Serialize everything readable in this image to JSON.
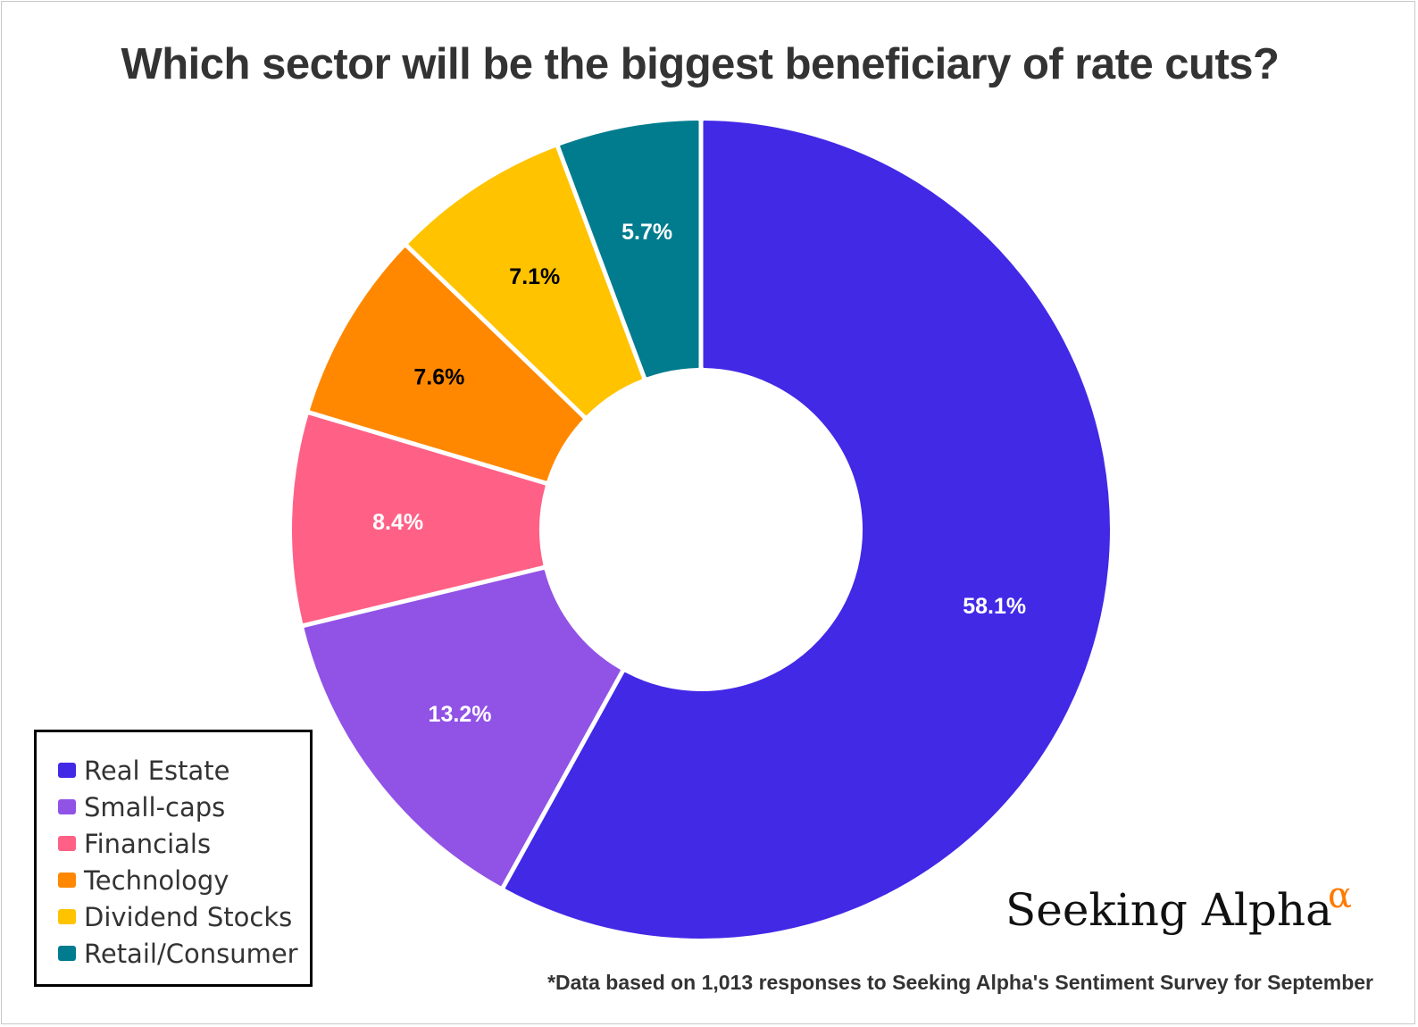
{
  "chart_data": {
    "type": "pie",
    "title": "Which sector will be the biggest beneficiary of rate cuts?",
    "donut": true,
    "categories": [
      "Real Estate",
      "Small-caps",
      "Financials",
      "Technology",
      "Dividend Stocks",
      "Retail/Consumer"
    ],
    "values": [
      58.1,
      13.2,
      8.4,
      7.6,
      7.1,
      5.7
    ],
    "value_labels": [
      "58.1%",
      "13.2%",
      "8.4%",
      "7.6%",
      "7.1%",
      "5.7%"
    ],
    "colors": [
      "#4229E6",
      "#9152E6",
      "#FF6186",
      "#FF8800",
      "#FFC300",
      "#007C8E"
    ],
    "label_colors": [
      "#ffffff",
      "#ffffff",
      "#ffffff",
      "#000000",
      "#000000",
      "#ffffff"
    ],
    "legend_position": "bottom-left"
  },
  "brand": {
    "name": "Seeking Alpha",
    "symbol": "α",
    "symbol_color": "#FF7A00"
  },
  "footnote": "*Data based on 1,013 responses to Seeking Alpha's Sentiment Survey for September"
}
